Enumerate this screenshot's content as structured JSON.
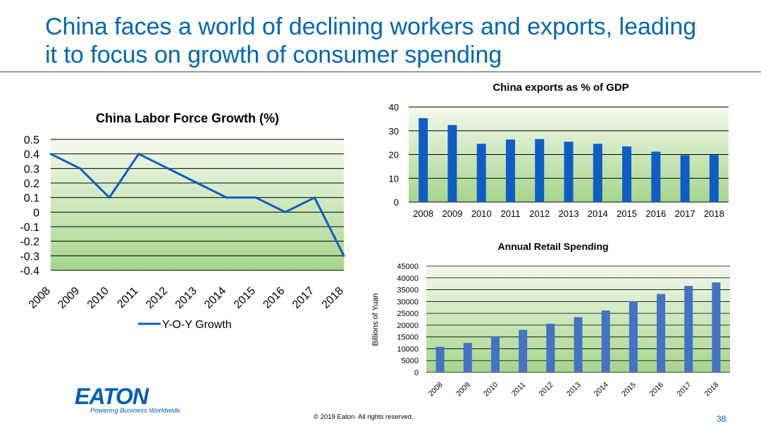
{
  "slide": {
    "title_line1": "China faces a world of declining workers and exports, leading",
    "title_line2": "it to focus on growth of consumer spending",
    "logo_text": "EATON",
    "logo_tagline": "Powering Business Worldwide",
    "copyright": "© 2019 Eaton. All rights reserved.",
    "page_number": "38"
  },
  "colors": {
    "title": "#0067b1",
    "series_dark_blue": "#0f5cc4",
    "series_medium_blue": "#4472c4",
    "plot_gradient_top": "#f4f9ee",
    "plot_gradient_bottom": "#a6d58a"
  },
  "chart_data": [
    {
      "type": "line",
      "title": "China Labor Force Growth (%)",
      "categories": [
        "2008",
        "2009",
        "2010",
        "2011",
        "2012",
        "2013",
        "2014",
        "2015",
        "2016",
        "2017",
        "2018"
      ],
      "series": [
        {
          "name": "Y-O-Y Growth",
          "values": [
            0.4,
            0.3,
            0.1,
            0.4,
            0.3,
            0.2,
            0.1,
            0.1,
            0.0,
            0.1,
            -0.3
          ]
        }
      ],
      "ylim": [
        -0.4,
        0.5
      ],
      "yticks": [
        "0.5",
        "0.4",
        "0.3",
        "0.2",
        "0.1",
        "0",
        "-0.1",
        "-0.2",
        "-0.3",
        "-0.4"
      ],
      "legend": "bottom",
      "grid": true
    },
    {
      "type": "bar",
      "title": "China exports as % of GDP",
      "categories": [
        "2008",
        "2009",
        "2010",
        "2011",
        "2012",
        "2013",
        "2014",
        "2015",
        "2016",
        "2017",
        "2018"
      ],
      "values": [
        35.3,
        32.4,
        24.5,
        26.3,
        26.5,
        25.4,
        24.5,
        23.4,
        21.2,
        19.7,
        19.8
      ],
      "ylim": [
        0,
        40
      ],
      "yticks": [
        "0",
        "10",
        "20",
        "30",
        "40"
      ],
      "grid": true
    },
    {
      "type": "bar",
      "title": "Annual Retail Spending",
      "ylabel": "Billions of Yuan",
      "categories": [
        "2008",
        "2009",
        "2010",
        "2011",
        "2012",
        "2013",
        "2014",
        "2015",
        "2016",
        "2017",
        "2018"
      ],
      "values": [
        10800,
        12500,
        15300,
        18000,
        20600,
        23400,
        26200,
        30100,
        33200,
        36600,
        38100
      ],
      "ylim": [
        0,
        45000
      ],
      "yticks": [
        "0",
        "5000",
        "10000",
        "15000",
        "20000",
        "25000",
        "30000",
        "35000",
        "40000",
        "45000"
      ],
      "grid": true
    }
  ]
}
